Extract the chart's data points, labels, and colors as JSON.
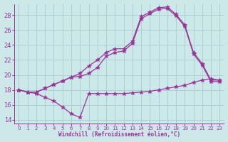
{
  "xlabel": "Windchill (Refroidissement éolien,°C)",
  "background_color": "#cce8e8",
  "grid_color": "#aacccc",
  "line_color": "#993399",
  "xlim": [
    -0.5,
    23.5
  ],
  "ylim": [
    13.5,
    29.5
  ],
  "xticks": [
    0,
    1,
    2,
    3,
    4,
    5,
    6,
    7,
    8,
    9,
    10,
    11,
    12,
    13,
    14,
    15,
    16,
    17,
    18,
    19,
    20,
    21,
    22,
    23
  ],
  "yticks": [
    14,
    16,
    18,
    20,
    22,
    24,
    26,
    28
  ],
  "x": [
    0,
    1,
    2,
    3,
    4,
    5,
    6,
    7,
    8,
    9,
    10,
    11,
    12,
    13,
    14,
    15,
    16,
    17,
    18,
    19,
    20,
    21,
    22,
    23
  ],
  "line1": [
    18.0,
    17.7,
    17.7,
    18.2,
    18.7,
    19.2,
    19.7,
    20.2,
    21.2,
    22.0,
    23.0,
    23.5,
    23.5,
    24.5,
    27.8,
    28.4,
    29.0,
    29.1,
    28.1,
    26.7,
    23.0,
    21.5,
    19.3,
    19.3
  ],
  "line2": [
    18.0,
    17.7,
    17.7,
    18.2,
    18.7,
    19.2,
    19.7,
    19.8,
    20.2,
    21.0,
    22.5,
    23.0,
    23.2,
    24.2,
    27.5,
    28.2,
    28.8,
    28.9,
    27.9,
    26.5,
    22.8,
    21.3,
    19.1,
    19.1
  ],
  "line3": [
    18.0,
    17.7,
    17.5,
    17.0,
    16.5,
    15.7,
    14.8,
    14.3,
    17.5,
    17.5,
    17.5,
    17.5,
    17.5,
    17.6,
    17.7,
    17.8,
    18.0,
    18.2,
    18.4,
    18.6,
    19.0,
    19.3,
    19.5,
    19.3
  ]
}
